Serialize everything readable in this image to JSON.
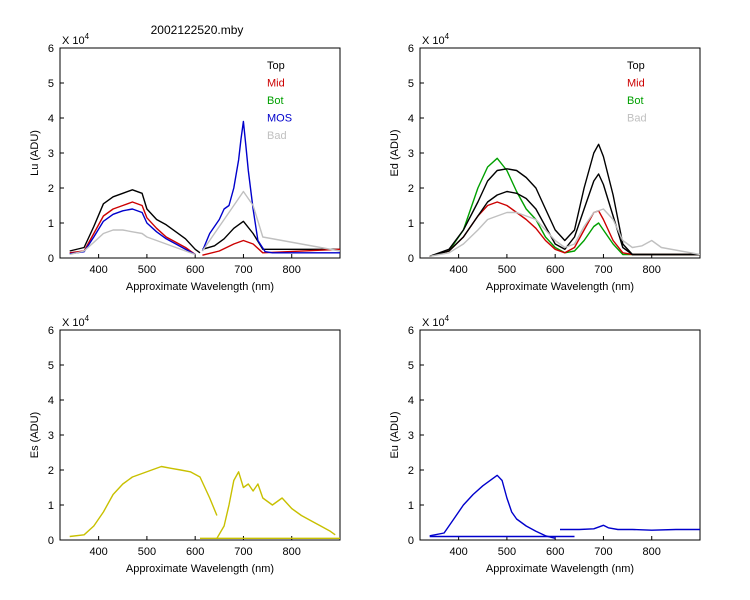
{
  "title": "2002122520.mby",
  "chart_data": [
    {
      "type": "line",
      "ylabel": "Lu (ADU)",
      "xlabel": "Approximate Wavelength (nm)",
      "y_exponent_label": "X 10",
      "y_exponent_power": "4",
      "xlim": [
        320,
        900
      ],
      "ylim": [
        0,
        6
      ],
      "xticks": [
        400,
        500,
        600,
        700,
        800
      ],
      "yticks": [
        0,
        1,
        2,
        3,
        4,
        5,
        6
      ],
      "legend": [
        {
          "label": "Top",
          "color": "#000000"
        },
        {
          "label": "Mid",
          "color": "#cc0000"
        },
        {
          "label": "Bot",
          "color": "#00a000"
        },
        {
          "label": "MOS",
          "color": "#0000cc"
        },
        {
          "label": "Bad",
          "color": "#c0c0c0"
        }
      ],
      "series": [
        {
          "name": "Top",
          "color": "#000000",
          "x": [
            340,
            370,
            390,
            410,
            430,
            450,
            470,
            490,
            500,
            520,
            540,
            560,
            580,
            600,
            610
          ],
          "y": [
            0.2,
            0.3,
            0.9,
            1.55,
            1.75,
            1.85,
            1.95,
            1.85,
            1.4,
            1.1,
            0.95,
            0.75,
            0.55,
            0.25,
            0.15
          ]
        },
        {
          "name": "Top",
          "color": "#000000",
          "x": [
            615,
            640,
            660,
            680,
            700,
            720,
            740,
            900
          ],
          "y": [
            0.25,
            0.35,
            0.55,
            0.85,
            1.05,
            0.7,
            0.25,
            0.25
          ]
        },
        {
          "name": "Mid",
          "color": "#cc0000",
          "x": [
            340,
            370,
            390,
            410,
            430,
            450,
            470,
            490,
            500,
            520,
            540,
            560,
            580,
            600
          ],
          "y": [
            0.15,
            0.2,
            0.7,
            1.2,
            1.4,
            1.5,
            1.6,
            1.5,
            1.15,
            0.85,
            0.6,
            0.45,
            0.3,
            0.1
          ]
        },
        {
          "name": "Mid",
          "color": "#cc0000",
          "x": [
            615,
            650,
            680,
            700,
            720,
            740,
            900
          ],
          "y": [
            0.08,
            0.2,
            0.4,
            0.5,
            0.4,
            0.15,
            0.25
          ]
        },
        {
          "name": "MOS",
          "color": "#0000cc",
          "x": [
            340,
            370,
            390,
            410,
            430,
            450,
            470,
            490,
            500,
            520,
            540,
            560,
            580,
            600
          ],
          "y": [
            0.12,
            0.18,
            0.6,
            1.05,
            1.25,
            1.35,
            1.4,
            1.3,
            1.0,
            0.75,
            0.55,
            0.4,
            0.25,
            0.1
          ]
        },
        {
          "name": "MOS",
          "color": "#0000cc",
          "x": [
            615,
            630,
            650,
            660,
            670,
            680,
            690,
            695,
            700,
            705,
            710,
            720,
            730,
            745,
            760,
            900
          ],
          "y": [
            0.2,
            0.7,
            1.1,
            1.4,
            1.5,
            2.0,
            2.8,
            3.4,
            3.9,
            3.2,
            2.5,
            1.4,
            0.5,
            0.18,
            0.15,
            0.15
          ]
        },
        {
          "name": "Bad",
          "color": "#c0c0c0",
          "x": [
            340,
            370,
            390,
            410,
            430,
            450,
            470,
            490,
            500,
            520,
            540,
            560,
            580,
            600
          ],
          "y": [
            0.1,
            0.2,
            0.45,
            0.7,
            0.8,
            0.8,
            0.75,
            0.7,
            0.6,
            0.5,
            0.4,
            0.3,
            0.2,
            0.1
          ]
        },
        {
          "name": "Bad",
          "color": "#c0c0c0",
          "x": [
            615,
            650,
            680,
            700,
            720,
            740,
            900
          ],
          "y": [
            0.2,
            0.9,
            1.5,
            1.9,
            1.5,
            0.6,
            0.2
          ]
        }
      ]
    },
    {
      "type": "line",
      "ylabel": "Ed  (ADU)",
      "xlabel": "Approximate Wavelength (nm)",
      "y_exponent_label": "X 10",
      "y_exponent_power": "4",
      "xlim": [
        320,
        900
      ],
      "ylim": [
        0,
        6
      ],
      "xticks": [
        400,
        500,
        600,
        700,
        800
      ],
      "yticks": [
        0,
        1,
        2,
        3,
        4,
        5,
        6
      ],
      "legend": [
        {
          "label": "Top",
          "color": "#000000"
        },
        {
          "label": "Mid",
          "color": "#cc0000"
        },
        {
          "label": "Bot",
          "color": "#00a000"
        },
        {
          "label": "Bad",
          "color": "#c0c0c0"
        }
      ],
      "series": [
        {
          "name": "Bot",
          "color": "#00a000",
          "x": [
            340,
            380,
            410,
            440,
            460,
            480,
            500,
            520,
            540,
            560,
            580,
            600,
            620,
            640,
            660,
            680,
            690,
            700,
            720,
            740,
            760,
            800,
            900
          ],
          "y": [
            0.05,
            0.2,
            0.8,
            2.0,
            2.6,
            2.85,
            2.5,
            1.9,
            1.4,
            1.1,
            0.6,
            0.3,
            0.15,
            0.2,
            0.5,
            0.9,
            1.0,
            0.8,
            0.4,
            0.1,
            0.1,
            0.1,
            0.1
          ]
        },
        {
          "name": "Mid",
          "color": "#cc0000",
          "x": [
            340,
            380,
            410,
            440,
            460,
            480,
            500,
            520,
            540,
            560,
            580,
            600,
            620,
            640,
            660,
            680,
            690,
            700,
            720,
            740,
            760,
            800,
            900
          ],
          "y": [
            0.05,
            0.2,
            0.6,
            1.2,
            1.5,
            1.6,
            1.5,
            1.3,
            1.1,
            0.85,
            0.5,
            0.25,
            0.15,
            0.3,
            0.8,
            1.3,
            1.35,
            1.1,
            0.5,
            0.15,
            0.1,
            0.1,
            0.1
          ]
        },
        {
          "name": "Top",
          "color": "#000000",
          "x": [
            340,
            380,
            410,
            440,
            460,
            480,
            500,
            520,
            540,
            560,
            580,
            600,
            620,
            640,
            660,
            680,
            690,
            700,
            720,
            740,
            760,
            800,
            900
          ],
          "y": [
            0.05,
            0.25,
            0.8,
            1.6,
            2.2,
            2.5,
            2.55,
            2.5,
            2.3,
            2.0,
            1.4,
            0.8,
            0.5,
            0.8,
            2.0,
            3.0,
            3.25,
            2.9,
            1.8,
            0.4,
            0.1,
            0.1,
            0.1
          ]
        },
        {
          "name": "Top",
          "color": "#000000",
          "x": [
            340,
            380,
            410,
            440,
            460,
            480,
            500,
            520,
            540,
            560,
            580,
            600,
            620,
            640,
            660,
            680,
            690,
            700,
            720,
            740,
            760,
            800,
            900
          ],
          "y": [
            0.05,
            0.2,
            0.6,
            1.2,
            1.6,
            1.8,
            1.9,
            1.85,
            1.7,
            1.4,
            0.9,
            0.4,
            0.25,
            0.6,
            1.4,
            2.2,
            2.4,
            2.1,
            1.2,
            0.3,
            0.1,
            0.1,
            0.1
          ]
        },
        {
          "name": "Bad",
          "color": "#c0c0c0",
          "x": [
            340,
            380,
            410,
            440,
            460,
            480,
            500,
            520,
            540,
            560,
            580,
            600,
            620,
            640,
            660,
            680,
            700,
            720,
            740,
            760,
            780,
            800,
            820,
            900
          ],
          "y": [
            0.05,
            0.15,
            0.4,
            0.8,
            1.1,
            1.2,
            1.3,
            1.3,
            1.2,
            1.1,
            0.8,
            0.5,
            0.3,
            0.4,
            0.9,
            1.3,
            1.4,
            1.1,
            0.5,
            0.3,
            0.35,
            0.5,
            0.3,
            0.1
          ]
        }
      ]
    },
    {
      "type": "line",
      "ylabel": "Es  (ADU)",
      "xlabel": "Approximate Wavelength (nm)",
      "y_exponent_label": "X 10",
      "y_exponent_power": "4",
      "xlim": [
        320,
        900
      ],
      "ylim": [
        0,
        6
      ],
      "xticks": [
        400,
        500,
        600,
        700,
        800
      ],
      "yticks": [
        0,
        1,
        2,
        3,
        4,
        5,
        6
      ],
      "legend": [],
      "series": [
        {
          "name": "Es",
          "color": "#c8c000",
          "x": [
            340,
            370,
            390,
            410,
            430,
            450,
            470,
            490,
            510,
            530,
            550,
            570,
            590,
            610,
            630,
            645
          ],
          "y": [
            0.1,
            0.15,
            0.4,
            0.8,
            1.3,
            1.6,
            1.8,
            1.9,
            2.0,
            2.1,
            2.05,
            2.0,
            1.95,
            1.8,
            1.2,
            0.7
          ]
        },
        {
          "name": "Es",
          "color": "#c8c000",
          "x": [
            645,
            660,
            670,
            680,
            690,
            700,
            710,
            720,
            730,
            740,
            760,
            780,
            800,
            820,
            840,
            860,
            880,
            890
          ],
          "y": [
            0.05,
            0.4,
            1.0,
            1.7,
            1.95,
            1.5,
            1.6,
            1.4,
            1.6,
            1.2,
            1.0,
            1.2,
            0.9,
            0.7,
            0.55,
            0.4,
            0.25,
            0.15
          ]
        },
        {
          "name": "Es",
          "color": "#c8c000",
          "x": [
            610,
            900
          ],
          "y": [
            0.05,
            0.05
          ]
        }
      ]
    },
    {
      "type": "line",
      "ylabel": "Eu  (ADU)",
      "xlabel": "Approximate Wavelength (nm)",
      "y_exponent_label": "X 10",
      "y_exponent_power": "4",
      "xlim": [
        320,
        900
      ],
      "ylim": [
        0,
        6
      ],
      "xticks": [
        400,
        500,
        600,
        700,
        800
      ],
      "yticks": [
        0,
        1,
        2,
        3,
        4,
        5,
        6
      ],
      "legend": [],
      "series": [
        {
          "name": "Eu",
          "color": "#0000cc",
          "x": [
            340,
            370,
            390,
            410,
            430,
            450,
            470,
            480,
            490,
            500,
            510,
            520,
            540,
            560,
            580,
            600
          ],
          "y": [
            0.12,
            0.2,
            0.6,
            1.0,
            1.3,
            1.55,
            1.75,
            1.85,
            1.7,
            1.2,
            0.8,
            0.6,
            0.4,
            0.25,
            0.12,
            0.05
          ]
        },
        {
          "name": "Eu",
          "color": "#0000cc",
          "x": [
            340,
            640
          ],
          "y": [
            0.1,
            0.1
          ]
        },
        {
          "name": "Eu",
          "color": "#0000cc",
          "x": [
            610,
            650,
            680,
            700,
            710,
            730,
            760,
            800,
            850,
            900
          ],
          "y": [
            0.3,
            0.3,
            0.32,
            0.42,
            0.35,
            0.3,
            0.3,
            0.28,
            0.3,
            0.3
          ]
        }
      ]
    }
  ]
}
